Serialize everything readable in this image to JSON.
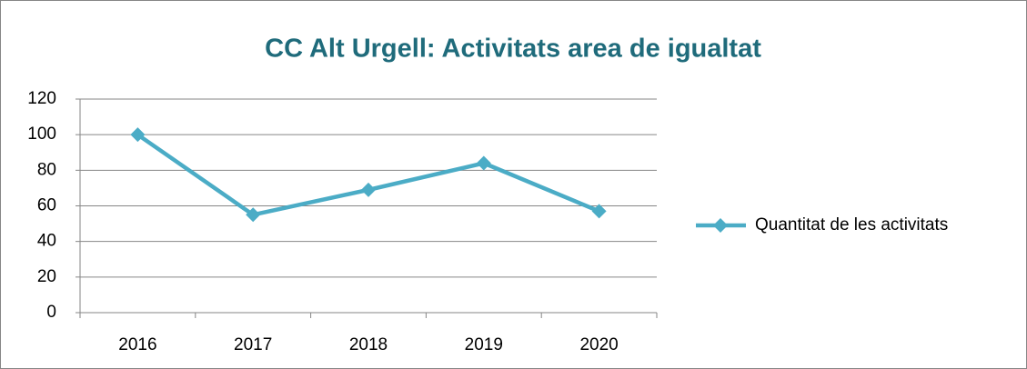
{
  "chart_data": {
    "type": "line",
    "title": "CC Alt Urgell: Activitats area de igualtat",
    "categories": [
      "2016",
      "2017",
      "2018",
      "2019",
      "2020"
    ],
    "series": [
      {
        "name": "Quantitat de les activitats",
        "color": "#4bacc6",
        "values": [
          100,
          55,
          69,
          84,
          57
        ]
      }
    ],
    "ylim": [
      0,
      120
    ],
    "yticks": [
      0,
      20,
      40,
      60,
      80,
      100,
      120
    ],
    "grid": true,
    "legend": "right"
  }
}
